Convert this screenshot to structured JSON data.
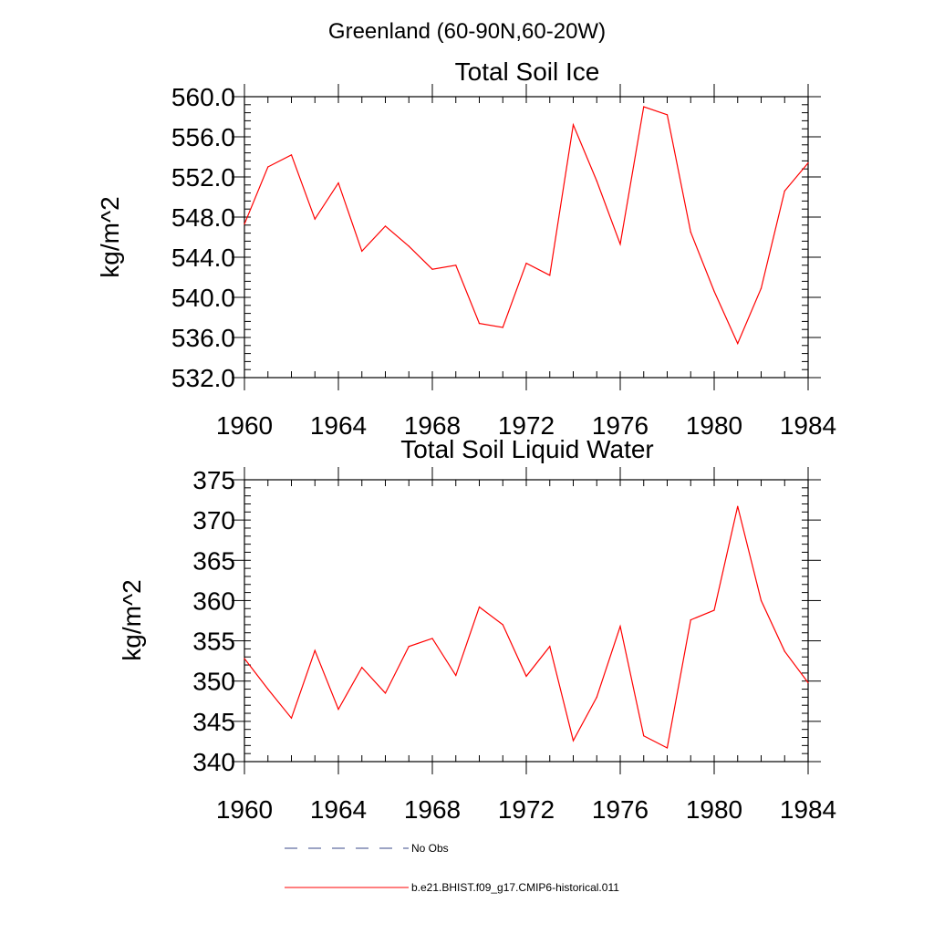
{
  "figure": {
    "suptitle": "Greenland (60-90N,60-20W)"
  },
  "chart_data": [
    {
      "type": "line",
      "title": "Total Soil Ice",
      "xlabel": "",
      "ylabel": "kg/m^2",
      "xlim": [
        1960,
        1984
      ],
      "ylim": [
        532,
        560
      ],
      "xticks": [
        1960,
        1964,
        1968,
        1972,
        1976,
        1980,
        1984
      ],
      "xtick_labels": [
        "1960",
        "1964",
        "1968",
        "1972",
        "1976",
        "1980",
        "1984"
      ],
      "yticks": [
        532,
        536,
        540,
        544,
        548,
        552,
        556,
        560
      ],
      "ytick_labels": [
        "532.0",
        "536.0",
        "540.0",
        "544.0",
        "548.0",
        "552.0",
        "556.0",
        "560.0"
      ],
      "yminor_step": 0.8,
      "xminor_step": 1,
      "x": [
        1960,
        1961,
        1962,
        1963,
        1964,
        1965,
        1966,
        1967,
        1968,
        1969,
        1970,
        1971,
        1972,
        1973,
        1974,
        1975,
        1976,
        1977,
        1978,
        1979,
        1980,
        1981,
        1982,
        1983,
        1984
      ],
      "series": [
        {
          "color": "#ff0000",
          "values": [
            547.3,
            553.0,
            554.2,
            547.8,
            551.4,
            544.6,
            547.1,
            545.1,
            542.8,
            543.2,
            537.4,
            537.0,
            543.4,
            542.2,
            557.2,
            551.6,
            545.3,
            559.0,
            558.2,
            546.5,
            540.6,
            535.4,
            540.9,
            550.6,
            553.4
          ]
        }
      ]
    },
    {
      "type": "line",
      "title": "Total Soil Liquid Water",
      "xlabel": "",
      "ylabel": "kg/m^2",
      "xlim": [
        1960,
        1984
      ],
      "ylim": [
        340,
        375
      ],
      "xticks": [
        1960,
        1964,
        1968,
        1972,
        1976,
        1980,
        1984
      ],
      "xtick_labels": [
        "1960",
        "1964",
        "1968",
        "1972",
        "1976",
        "1980",
        "1984"
      ],
      "yticks": [
        340,
        345,
        350,
        355,
        360,
        365,
        370,
        375
      ],
      "ytick_labels": [
        "340",
        "345",
        "350",
        "355",
        "360",
        "365",
        "370",
        "375"
      ],
      "yminor_step": 1,
      "xminor_step": 1,
      "x": [
        1960,
        1961,
        1962,
        1963,
        1964,
        1965,
        1966,
        1967,
        1968,
        1969,
        1970,
        1971,
        1972,
        1973,
        1974,
        1975,
        1976,
        1977,
        1978,
        1979,
        1980,
        1981,
        1982,
        1983,
        1984
      ],
      "series": [
        {
          "color": "#ff0000",
          "values": [
            352.8,
            349.0,
            345.4,
            353.8,
            346.5,
            351.7,
            348.5,
            354.3,
            355.3,
            350.7,
            359.2,
            357.0,
            350.6,
            354.3,
            342.6,
            348.0,
            356.8,
            343.2,
            341.7,
            357.6,
            358.8,
            371.7,
            360.0,
            353.7,
            349.8
          ]
        }
      ]
    }
  ],
  "legend": {
    "items": [
      {
        "label": "No Obs",
        "style": "dashed",
        "color": "#3a4a8a"
      },
      {
        "label": "b.e21.BHIST.f09_g17.CMIP6-historical.011",
        "style": "solid",
        "color": "#ff0000"
      }
    ]
  }
}
